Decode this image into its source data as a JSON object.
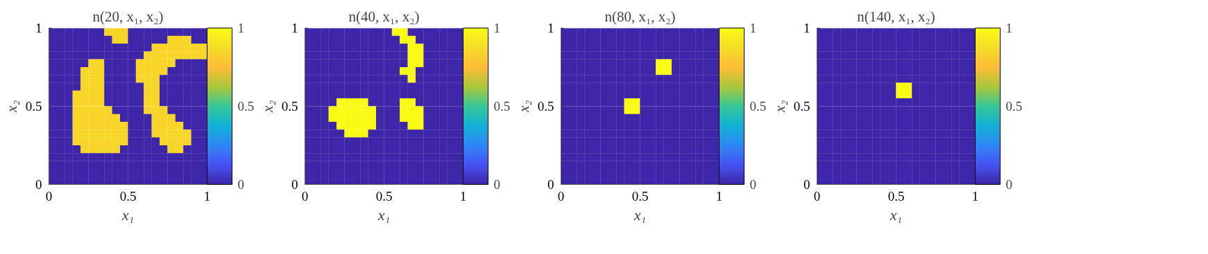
{
  "chart_data": [
    {
      "type": "heatmap",
      "title": "n(20, x₁, x₂)",
      "xlabel": "x₁",
      "ylabel": "x₂",
      "xlim": [
        0,
        1
      ],
      "ylim": [
        0,
        1
      ],
      "xticks": [
        0,
        0.5,
        1
      ],
      "yticks": [
        0,
        0.5,
        1
      ],
      "clim": [
        0,
        1
      ],
      "cticks": [
        0,
        0.5,
        1
      ],
      "cells": [
        [
          0,
          0,
          0,
          0,
          0,
          0,
          0,
          0.85,
          0.85,
          0.85,
          0,
          0,
          0,
          0,
          0,
          0,
          0,
          0,
          0,
          0
        ],
        [
          0,
          0,
          0,
          0,
          0,
          0,
          0,
          0,
          0.85,
          0.85,
          0,
          0,
          0,
          0,
          0,
          0.85,
          0.85,
          0.85,
          0,
          0
        ],
        [
          0,
          0,
          0,
          0,
          0,
          0,
          0,
          0,
          0,
          0,
          0,
          0,
          0,
          0.85,
          0.85,
          0.85,
          0.85,
          0.85,
          0.85,
          0.85
        ],
        [
          0,
          0,
          0,
          0,
          0,
          0,
          0,
          0,
          0,
          0,
          0,
          0,
          0.85,
          0.85,
          0.85,
          0.85,
          0.85,
          0.85,
          0.85,
          0.85
        ],
        [
          0,
          0,
          0,
          0,
          0,
          0.85,
          0.85,
          0,
          0,
          0,
          0,
          0.85,
          0.85,
          0.85,
          0.85,
          0.85,
          0,
          0,
          0,
          0
        ],
        [
          0,
          0,
          0,
          0,
          0.85,
          0.85,
          0.85,
          0,
          0,
          0,
          0,
          0.85,
          0.85,
          0.85,
          0.85,
          0,
          0,
          0,
          0,
          0
        ],
        [
          0,
          0,
          0,
          0,
          0.85,
          0.85,
          0.85,
          0,
          0,
          0,
          0,
          0.85,
          0.85,
          0.85,
          0,
          0,
          0,
          0,
          0,
          0
        ],
        [
          0,
          0,
          0,
          0,
          0.85,
          0.85,
          0.85,
          0,
          0,
          0,
          0,
          0,
          0.85,
          0.85,
          0,
          0,
          0,
          0,
          0,
          0
        ],
        [
          0,
          0,
          0,
          0.85,
          0.85,
          0.85,
          0.85,
          0,
          0,
          0,
          0,
          0,
          0.85,
          0.85,
          0,
          0,
          0,
          0,
          0,
          0
        ],
        [
          0,
          0,
          0,
          0.85,
          0.85,
          0.85,
          0.85,
          0,
          0,
          0,
          0,
          0,
          0.85,
          0.85,
          0,
          0,
          0,
          0,
          0,
          0
        ],
        [
          0,
          0,
          0,
          0.85,
          0.85,
          0.85,
          0.85,
          0.85,
          0,
          0,
          0,
          0,
          0.85,
          0.85,
          0.85,
          0,
          0,
          0,
          0,
          0
        ],
        [
          0,
          0,
          0,
          0.85,
          0.85,
          0.85,
          0.85,
          0.85,
          0.85,
          0,
          0,
          0,
          0,
          0.85,
          0.85,
          0.85,
          0,
          0,
          0,
          0
        ],
        [
          0,
          0,
          0,
          0.85,
          0.85,
          0.85,
          0.85,
          0.85,
          0.85,
          0.85,
          0,
          0,
          0,
          0.85,
          0.85,
          0.85,
          0.85,
          0,
          0,
          0
        ],
        [
          0,
          0,
          0,
          0.85,
          0.85,
          0.85,
          0.85,
          0.85,
          0.85,
          0.85,
          0,
          0,
          0,
          0.85,
          0.85,
          0.85,
          0.85,
          0.85,
          0,
          0
        ],
        [
          0,
          0,
          0,
          0.85,
          0.85,
          0.85,
          0.85,
          0.85,
          0.85,
          0.85,
          0,
          0,
          0,
          0,
          0.85,
          0.85,
          0.85,
          0.85,
          0,
          0
        ],
        [
          0,
          0,
          0,
          0,
          0.85,
          0.85,
          0.85,
          0.85,
          0.85,
          0,
          0,
          0,
          0,
          0,
          0,
          0.85,
          0.85,
          0,
          0,
          0
        ],
        [
          0,
          0,
          0,
          0,
          0,
          0,
          0,
          0,
          0,
          0,
          0,
          0,
          0,
          0,
          0,
          0,
          0,
          0,
          0,
          0
        ],
        [
          0,
          0,
          0,
          0,
          0,
          0,
          0,
          0,
          0,
          0,
          0,
          0,
          0,
          0,
          0,
          0,
          0,
          0,
          0,
          0
        ],
        [
          0,
          0,
          0,
          0,
          0,
          0,
          0,
          0,
          0,
          0,
          0,
          0,
          0,
          0,
          0,
          0,
          0,
          0,
          0,
          0
        ],
        [
          0,
          0,
          0,
          0,
          0,
          0,
          0,
          0,
          0,
          0,
          0,
          0,
          0,
          0,
          0,
          0,
          0,
          0,
          0,
          0
        ]
      ]
    },
    {
      "type": "heatmap",
      "title": "n(40, x₁, x₂)",
      "xlabel": "x₁",
      "ylabel": "x₂",
      "xlim": [
        0,
        1
      ],
      "ylim": [
        0,
        1
      ],
      "xticks": [
        0,
        0.5,
        1
      ],
      "yticks": [
        0,
        0.5,
        1
      ],
      "clim": [
        0,
        1
      ],
      "cticks": [
        0,
        0.5,
        1
      ],
      "cells": [
        [
          0,
          0,
          0,
          0,
          0,
          0,
          0,
          0,
          0,
          0,
          0,
          1,
          1,
          0,
          0,
          0,
          0,
          0,
          0,
          0
        ],
        [
          0,
          0,
          0,
          0,
          0,
          0,
          0,
          0,
          0,
          0,
          0,
          0,
          1,
          1,
          0,
          0,
          0,
          0,
          0,
          0
        ],
        [
          0,
          0,
          0,
          0,
          0,
          0,
          0,
          0,
          0,
          0,
          0,
          0,
          0,
          1,
          1,
          0,
          0,
          0,
          0,
          0
        ],
        [
          0,
          0,
          0,
          0,
          0,
          0,
          0,
          0,
          0,
          0,
          0,
          0,
          0,
          1,
          1,
          0,
          0,
          0,
          0,
          0
        ],
        [
          0,
          0,
          0,
          0,
          0,
          0,
          0,
          0,
          0,
          0,
          0,
          0,
          0,
          1,
          1,
          0,
          0,
          0,
          0,
          0
        ],
        [
          0,
          0,
          0,
          0,
          0,
          0,
          0,
          0,
          0,
          0,
          0,
          0,
          1,
          1,
          0,
          0,
          0,
          0,
          0,
          0
        ],
        [
          0,
          0,
          0,
          0,
          0,
          0,
          0,
          0,
          0,
          0,
          0,
          0,
          0,
          1,
          0,
          0,
          0,
          0,
          0,
          0
        ],
        [
          0,
          0,
          0,
          0,
          0,
          0,
          0,
          0,
          0,
          0,
          0,
          0,
          0,
          0,
          0,
          0,
          0,
          0,
          0,
          0
        ],
        [
          0,
          0,
          0,
          0,
          0,
          0,
          0,
          0,
          0,
          0,
          0,
          0,
          0,
          0,
          0,
          0,
          0,
          0,
          0,
          0
        ],
        [
          0,
          0,
          0,
          0,
          1,
          1,
          1,
          1,
          0,
          0,
          0,
          0,
          1,
          1,
          0,
          0,
          0,
          0,
          0,
          0
        ],
        [
          0,
          0,
          0,
          1,
          1,
          1,
          1,
          1,
          1,
          0,
          0,
          0,
          1,
          1,
          1,
          0,
          0,
          0,
          0,
          0
        ],
        [
          0,
          0,
          0,
          1,
          1,
          1,
          1,
          1,
          1,
          0,
          0,
          0,
          1,
          1,
          1,
          0,
          0,
          0,
          0,
          0
        ],
        [
          0,
          0,
          0,
          0,
          1,
          1,
          1,
          1,
          1,
          0,
          0,
          0,
          0,
          1,
          1,
          0,
          0,
          0,
          0,
          0
        ],
        [
          0,
          0,
          0,
          0,
          0,
          1,
          1,
          1,
          0,
          0,
          0,
          0,
          0,
          0,
          0,
          0,
          0,
          0,
          0,
          0
        ],
        [
          0,
          0,
          0,
          0,
          0,
          0,
          0,
          0,
          0,
          0,
          0,
          0,
          0,
          0,
          0,
          0,
          0,
          0,
          0,
          0
        ],
        [
          0,
          0,
          0,
          0,
          0,
          0,
          0,
          0,
          0,
          0,
          0,
          0,
          0,
          0,
          0,
          0,
          0,
          0,
          0,
          0
        ],
        [
          0,
          0,
          0,
          0,
          0,
          0,
          0,
          0,
          0,
          0,
          0,
          0,
          0,
          0,
          0,
          0,
          0,
          0,
          0,
          0
        ],
        [
          0,
          0,
          0,
          0,
          0,
          0,
          0,
          0,
          0,
          0,
          0,
          0,
          0,
          0,
          0,
          0,
          0,
          0,
          0,
          0
        ],
        [
          0,
          0,
          0,
          0,
          0,
          0,
          0,
          0,
          0,
          0,
          0,
          0,
          0,
          0,
          0,
          0,
          0,
          0,
          0,
          0
        ],
        [
          0,
          0,
          0,
          0,
          0,
          0,
          0,
          0,
          0,
          0,
          0,
          0,
          0,
          0,
          0,
          0,
          0,
          0,
          0,
          0
        ]
      ]
    },
    {
      "type": "heatmap",
      "title": "n(80, x₁, x₂)",
      "xlabel": "x₁",
      "ylabel": "x₂",
      "xlim": [
        0,
        1
      ],
      "ylim": [
        0,
        1
      ],
      "xticks": [
        0,
        0.5,
        1
      ],
      "yticks": [
        0,
        0.5,
        1
      ],
      "clim": [
        0,
        1
      ],
      "cticks": [
        0,
        0.5,
        1
      ],
      "cells": [
        [
          0,
          0,
          0,
          0,
          0,
          0,
          0,
          0,
          0,
          0,
          0,
          0,
          0,
          0,
          0,
          0,
          0,
          0,
          0,
          0
        ],
        [
          0,
          0,
          0,
          0,
          0,
          0,
          0,
          0,
          0,
          0,
          0,
          0,
          0,
          0,
          0,
          0,
          0,
          0,
          0,
          0
        ],
        [
          0,
          0,
          0,
          0,
          0,
          0,
          0,
          0,
          0,
          0,
          0,
          0,
          0,
          0,
          0,
          0,
          0,
          0,
          0,
          0
        ],
        [
          0,
          0,
          0,
          0,
          0,
          0,
          0,
          0,
          0,
          0,
          0,
          0,
          0,
          0,
          0,
          0,
          0,
          0,
          0,
          0
        ],
        [
          0,
          0,
          0,
          0,
          0,
          0,
          0,
          0,
          0,
          0,
          0,
          0,
          1,
          1,
          0,
          0,
          0,
          0,
          0,
          0
        ],
        [
          0,
          0,
          0,
          0,
          0,
          0,
          0,
          0,
          0,
          0,
          0,
          0,
          1,
          1,
          0,
          0,
          0,
          0,
          0,
          0
        ],
        [
          0,
          0,
          0,
          0,
          0,
          0,
          0,
          0,
          0,
          0,
          0,
          0,
          0,
          0,
          0,
          0,
          0,
          0,
          0,
          0
        ],
        [
          0,
          0,
          0,
          0,
          0,
          0,
          0,
          0,
          0,
          0,
          0,
          0,
          0,
          0,
          0,
          0,
          0,
          0,
          0,
          0
        ],
        [
          0,
          0,
          0,
          0,
          0,
          0,
          0,
          0,
          0,
          0,
          0,
          0,
          0,
          0,
          0,
          0,
          0,
          0,
          0,
          0
        ],
        [
          0,
          0,
          0,
          0,
          0,
          0,
          0,
          0,
          1,
          1,
          0,
          0,
          0,
          0,
          0,
          0,
          0,
          0,
          0,
          0
        ],
        [
          0,
          0,
          0,
          0,
          0,
          0,
          0,
          0,
          1,
          1,
          0,
          0,
          0,
          0,
          0,
          0,
          0,
          0,
          0,
          0
        ],
        [
          0,
          0,
          0,
          0,
          0,
          0,
          0,
          0,
          0,
          0,
          0,
          0,
          0,
          0,
          0,
          0,
          0,
          0,
          0,
          0
        ],
        [
          0,
          0,
          0,
          0,
          0,
          0,
          0,
          0,
          0,
          0,
          0,
          0,
          0,
          0,
          0,
          0,
          0,
          0,
          0,
          0
        ],
        [
          0,
          0,
          0,
          0,
          0,
          0,
          0,
          0,
          0,
          0,
          0,
          0,
          0,
          0,
          0,
          0,
          0,
          0,
          0,
          0
        ],
        [
          0,
          0,
          0,
          0,
          0,
          0,
          0,
          0,
          0,
          0,
          0,
          0,
          0,
          0,
          0,
          0,
          0,
          0,
          0,
          0
        ],
        [
          0,
          0,
          0,
          0,
          0,
          0,
          0,
          0,
          0,
          0,
          0,
          0,
          0,
          0,
          0,
          0,
          0,
          0,
          0,
          0
        ],
        [
          0,
          0,
          0,
          0,
          0,
          0,
          0,
          0,
          0,
          0,
          0,
          0,
          0,
          0,
          0,
          0,
          0,
          0,
          0,
          0
        ],
        [
          0,
          0,
          0,
          0,
          0,
          0,
          0,
          0,
          0,
          0,
          0,
          0,
          0,
          0,
          0,
          0,
          0,
          0,
          0,
          0
        ],
        [
          0,
          0,
          0,
          0,
          0,
          0,
          0,
          0,
          0,
          0,
          0,
          0,
          0,
          0,
          0,
          0,
          0,
          0,
          0,
          0
        ],
        [
          0,
          0,
          0,
          0,
          0,
          0,
          0,
          0,
          0,
          0,
          0,
          0,
          0,
          0,
          0,
          0,
          0,
          0,
          0,
          0
        ]
      ]
    },
    {
      "type": "heatmap",
      "title": "n(140, x₁, x₂)",
      "xlabel": "x₁",
      "ylabel": "x₂",
      "xlim": [
        0,
        1
      ],
      "ylim": [
        0,
        1
      ],
      "xticks": [
        0,
        0.5,
        1
      ],
      "yticks": [
        0,
        0.5,
        1
      ],
      "clim": [
        0,
        1
      ],
      "cticks": [
        0,
        0.5,
        1
      ],
      "cells": [
        [
          0,
          0,
          0,
          0,
          0,
          0,
          0,
          0,
          0,
          0,
          0,
          0,
          0,
          0,
          0,
          0,
          0,
          0,
          0,
          0
        ],
        [
          0,
          0,
          0,
          0,
          0,
          0,
          0,
          0,
          0,
          0,
          0,
          0,
          0,
          0,
          0,
          0,
          0,
          0,
          0,
          0
        ],
        [
          0,
          0,
          0,
          0,
          0,
          0,
          0,
          0,
          0,
          0,
          0,
          0,
          0,
          0,
          0,
          0,
          0,
          0,
          0,
          0
        ],
        [
          0,
          0,
          0,
          0,
          0,
          0,
          0,
          0,
          0,
          0,
          0,
          0,
          0,
          0,
          0,
          0,
          0,
          0,
          0,
          0
        ],
        [
          0,
          0,
          0,
          0,
          0,
          0,
          0,
          0,
          0,
          0,
          0,
          0,
          0,
          0,
          0,
          0,
          0,
          0,
          0,
          0
        ],
        [
          0,
          0,
          0,
          0,
          0,
          0,
          0,
          0,
          0,
          0,
          0,
          0,
          0,
          0,
          0,
          0,
          0,
          0,
          0,
          0
        ],
        [
          0,
          0,
          0,
          0,
          0,
          0,
          0,
          0,
          0,
          0,
          0,
          0,
          0,
          0,
          0,
          0,
          0,
          0,
          0,
          0
        ],
        [
          0,
          0,
          0,
          0,
          0,
          0,
          0,
          0,
          0,
          0,
          1,
          1,
          0,
          0,
          0,
          0,
          0,
          0,
          0,
          0
        ],
        [
          0,
          0,
          0,
          0,
          0,
          0,
          0,
          0,
          0,
          0,
          1,
          1,
          0,
          0,
          0,
          0,
          0,
          0,
          0,
          0
        ],
        [
          0,
          0,
          0,
          0,
          0,
          0,
          0,
          0,
          0,
          0,
          0,
          0,
          0,
          0,
          0,
          0,
          0,
          0,
          0,
          0
        ],
        [
          0,
          0,
          0,
          0,
          0,
          0,
          0,
          0,
          0,
          0,
          0,
          0,
          0,
          0,
          0,
          0,
          0,
          0,
          0,
          0
        ],
        [
          0,
          0,
          0,
          0,
          0,
          0,
          0,
          0,
          0,
          0,
          0,
          0,
          0,
          0,
          0,
          0,
          0,
          0,
          0,
          0
        ],
        [
          0,
          0,
          0,
          0,
          0,
          0,
          0,
          0,
          0,
          0,
          0,
          0,
          0,
          0,
          0,
          0,
          0,
          0,
          0,
          0
        ],
        [
          0,
          0,
          0,
          0,
          0,
          0,
          0,
          0,
          0,
          0,
          0,
          0,
          0,
          0,
          0,
          0,
          0,
          0,
          0,
          0
        ],
        [
          0,
          0,
          0,
          0,
          0,
          0,
          0,
          0,
          0,
          0,
          0,
          0,
          0,
          0,
          0,
          0,
          0,
          0,
          0,
          0
        ],
        [
          0,
          0,
          0,
          0,
          0,
          0,
          0,
          0,
          0,
          0,
          0,
          0,
          0,
          0,
          0,
          0,
          0,
          0,
          0,
          0
        ],
        [
          0,
          0,
          0,
          0,
          0,
          0,
          0,
          0,
          0,
          0,
          0,
          0,
          0,
          0,
          0,
          0,
          0,
          0,
          0,
          0
        ],
        [
          0,
          0,
          0,
          0,
          0,
          0,
          0,
          0,
          0,
          0,
          0,
          0,
          0,
          0,
          0,
          0,
          0,
          0,
          0,
          0
        ],
        [
          0,
          0,
          0,
          0,
          0,
          0,
          0,
          0,
          0,
          0,
          0,
          0,
          0,
          0,
          0,
          0,
          0,
          0,
          0,
          0
        ],
        [
          0,
          0,
          0,
          0,
          0,
          0,
          0,
          0,
          0,
          0,
          0,
          0,
          0,
          0,
          0,
          0,
          0,
          0,
          0,
          0
        ]
      ]
    }
  ]
}
